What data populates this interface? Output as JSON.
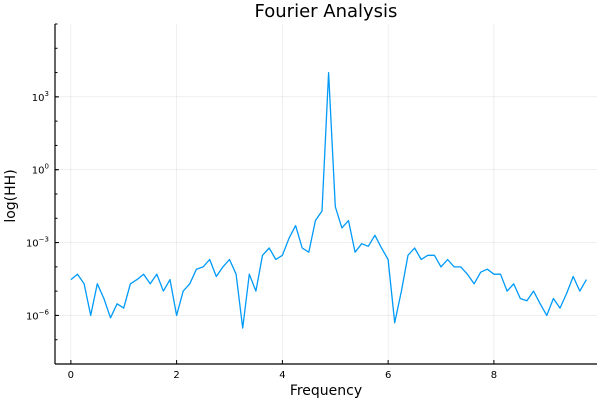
{
  "chart_data": {
    "type": "line",
    "title": "Fourier Analysis",
    "xlabel": "Frequency",
    "ylabel": "log(HH)",
    "xlim": [
      -0.3,
      9.95
    ],
    "ylim": [
      1e-08,
      1000000
    ],
    "yscale": "log",
    "grid": true,
    "legend": "none",
    "x_ticks": [
      0,
      2,
      4,
      6,
      8
    ],
    "x_tick_labels": [
      "0",
      "2",
      "4",
      "6",
      "8"
    ],
    "y_ticks": [
      1e-06,
      0.001,
      1,
      1000
    ],
    "y_tick_labels": [
      {
        "base": "10",
        "exp": "−6"
      },
      {
        "base": "10",
        "exp": "−3"
      },
      {
        "base": "10",
        "exp": "0"
      },
      {
        "base": "10",
        "exp": "3"
      }
    ],
    "series": [
      {
        "color": "#009af9",
        "x": [
          0.0,
          0.125,
          0.25,
          0.375,
          0.5,
          0.625,
          0.75,
          0.875,
          1.0,
          1.125,
          1.25,
          1.375,
          1.5,
          1.625,
          1.75,
          1.875,
          2.0,
          2.125,
          2.25,
          2.375,
          2.5,
          2.625,
          2.75,
          2.875,
          3.0,
          3.125,
          3.25,
          3.375,
          3.5,
          3.625,
          3.75,
          3.875,
          4.0,
          4.125,
          4.25,
          4.375,
          4.5,
          4.625,
          4.75,
          4.875,
          5.0,
          5.125,
          5.25,
          5.375,
          5.5,
          5.625,
          5.75,
          5.875,
          6.0,
          6.125,
          6.25,
          6.375,
          6.5,
          6.625,
          6.75,
          6.875,
          7.0,
          7.125,
          7.25,
          7.375,
          7.5,
          7.625,
          7.75,
          7.875,
          8.0,
          8.125,
          8.25,
          8.375,
          8.5,
          8.625,
          8.75,
          8.875,
          9.0,
          9.125,
          9.25,
          9.375,
          9.5,
          9.625,
          9.75
        ],
        "y": [
          3e-05,
          5e-05,
          2e-05,
          1e-06,
          2e-05,
          5e-06,
          8e-07,
          3e-06,
          2e-06,
          2e-05,
          3e-05,
          5e-05,
          2e-05,
          5e-05,
          1e-05,
          3e-05,
          1e-06,
          1e-05,
          2e-05,
          8e-05,
          0.0001,
          0.0002,
          4e-05,
          0.0001,
          0.0002,
          5e-05,
          3e-07,
          5e-05,
          1e-05,
          0.0003,
          0.0006,
          0.0002,
          0.0003,
          0.0015,
          0.005,
          0.0006,
          0.0004,
          0.008,
          0.02,
          10000.0,
          0.03,
          0.004,
          0.008,
          0.0004,
          0.0009,
          0.0007,
          0.002,
          0.0006,
          0.0002,
          5e-07,
          1e-05,
          0.0003,
          0.0006,
          0.0002,
          0.0003,
          0.0003,
          0.0001,
          0.0002,
          0.0001,
          0.0001,
          5e-05,
          2e-05,
          6e-05,
          8e-05,
          5e-05,
          5e-05,
          1e-05,
          2e-05,
          5e-06,
          4e-06,
          1e-05,
          3e-06,
          1e-06,
          5e-06,
          2e-06,
          8e-06,
          4e-05,
          1e-05,
          3e-05
        ]
      }
    ]
  }
}
